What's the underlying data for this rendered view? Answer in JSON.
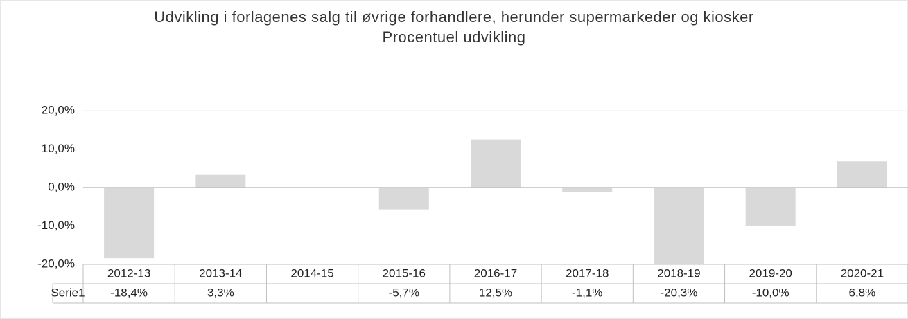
{
  "chart_data": {
    "type": "bar",
    "title": "Udvikling i forlagenes salg til øvrige forhandlere, herunder supermarkeder og kiosker",
    "subtitle": "Procentuel udvikling",
    "categories": [
      "2012-13",
      "2013-14",
      "2014-15",
      "2015-16",
      "2016-17",
      "2017-18",
      "2018-19",
      "2019-20",
      "2020-21"
    ],
    "series": [
      {
        "name": "Serie1",
        "color": "#d9d9d9",
        "values": [
          -18.4,
          3.3,
          null,
          -5.7,
          12.5,
          -1.1,
          -20.3,
          -10.0,
          6.8
        ],
        "value_labels": [
          "-18,4%",
          "3,3%",
          null,
          "-5,7%",
          "12,5%",
          "-1,1%",
          "-20,3%",
          "-10,0%",
          "6,8%"
        ]
      }
    ],
    "ylim": [
      -20,
      20
    ],
    "yticks": [
      {
        "value": -20,
        "label": "-20,0%"
      },
      {
        "value": -10,
        "label": "-10,0%"
      },
      {
        "value": 0,
        "label": "0,0%"
      },
      {
        "value": 10,
        "label": "10,0%"
      },
      {
        "value": 20,
        "label": "20,0%"
      }
    ],
    "grid": true
  }
}
